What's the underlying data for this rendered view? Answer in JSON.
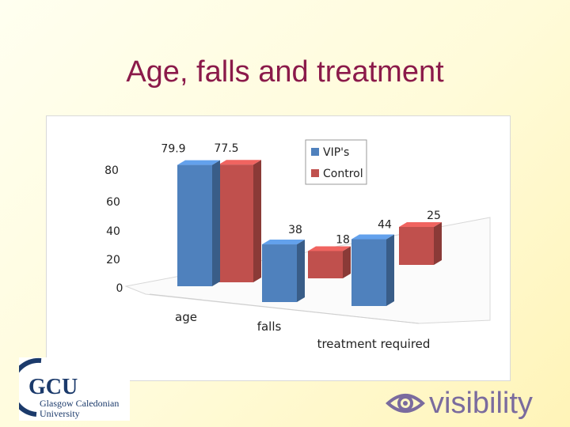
{
  "slide": {
    "title": "Age, falls and treatment",
    "y_unit": "%"
  },
  "chart_data": {
    "type": "bar",
    "categories": [
      "age",
      "falls",
      "treatment required"
    ],
    "series": [
      {
        "name": "VIP's",
        "values": [
          79.9,
          38,
          44
        ],
        "color": "#4f81bd"
      },
      {
        "name": "Control",
        "values": [
          77.5,
          18,
          25
        ],
        "color": "#c0504d"
      }
    ],
    "y_ticks": [
      0,
      20,
      40,
      60,
      80
    ],
    "ylim": [
      0,
      80
    ],
    "legend": "top-right",
    "grid": false,
    "style": "3d-clustered"
  },
  "logos": {
    "gcu": {
      "abbr": "GCU",
      "line1": "Glasgow Caledonian",
      "line2": "University"
    },
    "visibility": {
      "text": "visibility"
    }
  }
}
